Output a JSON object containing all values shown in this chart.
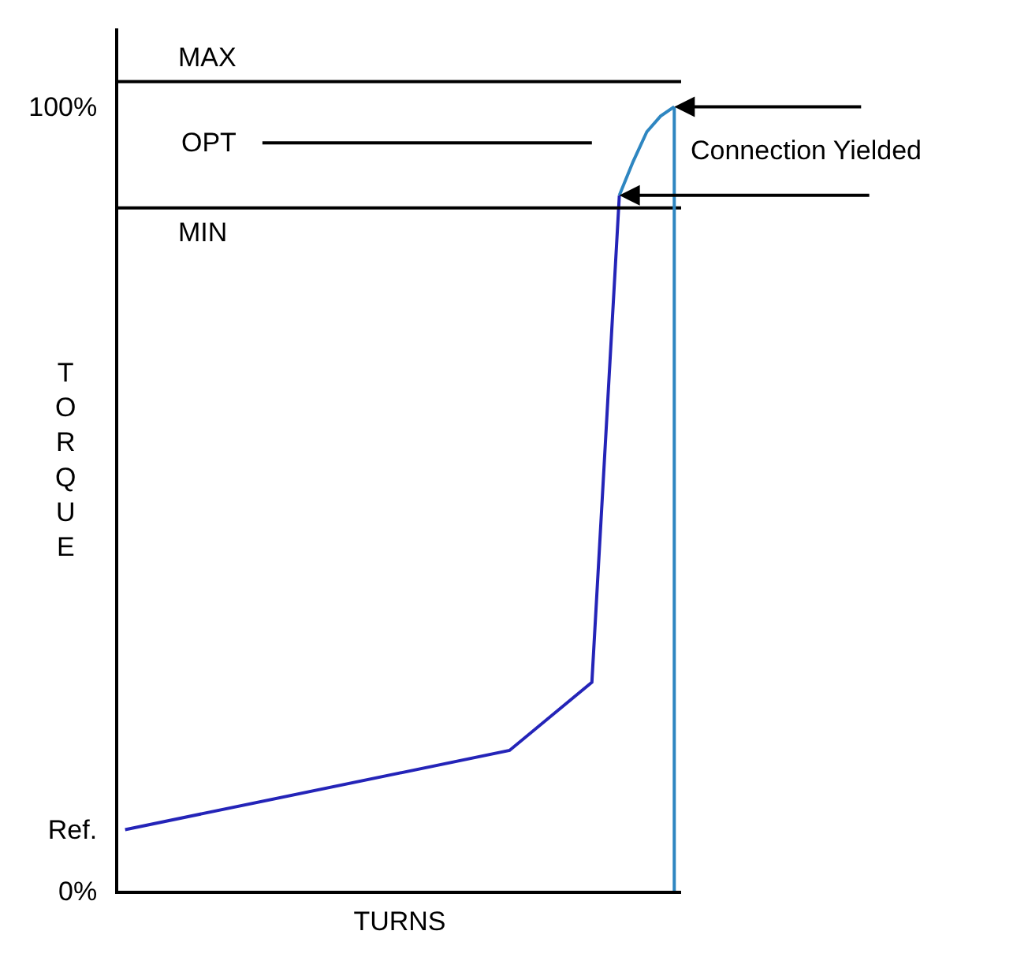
{
  "chart_data": {
    "type": "line",
    "xlabel": "TURNS",
    "ylabel": "TORQUE",
    "categories": [
      null,
      null,
      null,
      null,
      null,
      null,
      null,
      null,
      null,
      null,
      null,
      null,
      null,
      null,
      null,
      null,
      null,
      null,
      null,
      null,
      null,
      null,
      null,
      null,
      null,
      null,
      null,
      null,
      null,
      null,
      null,
      null,
      null,
      null,
      null,
      null,
      null,
      null,
      null,
      null,
      null
    ],
    "ylim": [
      0,
      110
    ],
    "yticks": [
      {
        "value": 0,
        "label": "0%"
      },
      {
        "value": 7.8,
        "label": "Ref."
      },
      {
        "value": 100,
        "label": "100%"
      }
    ],
    "tick_labels": "y",
    "grid": false,
    "legend": false,
    "marker": "none",
    "line_style": "solid",
    "series": [
      {
        "values": [
          7.8,
          null,
          null,
          null,
          null,
          null,
          null,
          null,
          null,
          null,
          null,
          null,
          null,
          null,
          null,
          null,
          null,
          null,
          null,
          null,
          null,
          null,
          null,
          null,
          null,
          null,
          null,
          null,
          17.9,
          null,
          null,
          null,
          null,
          null,
          26.6,
          null,
          88.7,
          null,
          null,
          null,
          null
        ],
        "color": "#2424b8"
      },
      {
        "values": [
          null,
          null,
          null,
          null,
          null,
          null,
          null,
          null,
          null,
          null,
          null,
          null,
          null,
          null,
          null,
          null,
          null,
          null,
          null,
          null,
          null,
          null,
          null,
          null,
          null,
          null,
          null,
          null,
          null,
          null,
          null,
          null,
          null,
          null,
          null,
          null,
          88.7,
          93.0,
          96.8,
          98.8,
          100
        ],
        "color": "#2e86c1"
      },
      {
        "name": "OPT",
        "values": [
          null,
          null,
          null,
          null,
          null,
          null,
          null,
          null,
          null,
          null,
          95.4,
          null,
          null,
          null,
          null,
          null,
          null,
          null,
          null,
          null,
          null,
          null,
          null,
          null,
          null,
          null,
          null,
          null,
          null,
          null,
          null,
          null,
          null,
          null,
          95.4,
          null,
          null,
          null,
          null,
          null,
          null
        ],
        "color": "#000000"
      }
    ],
    "ref_lines": [
      {
        "axis": "y",
        "value": 103.2,
        "label": "MAX",
        "color": "#000000"
      },
      {
        "axis": "y",
        "value": 87.1,
        "label": "MIN",
        "color": "#000000"
      }
    ],
    "annotations": [
      "Connection Yielded"
    ]
  }
}
